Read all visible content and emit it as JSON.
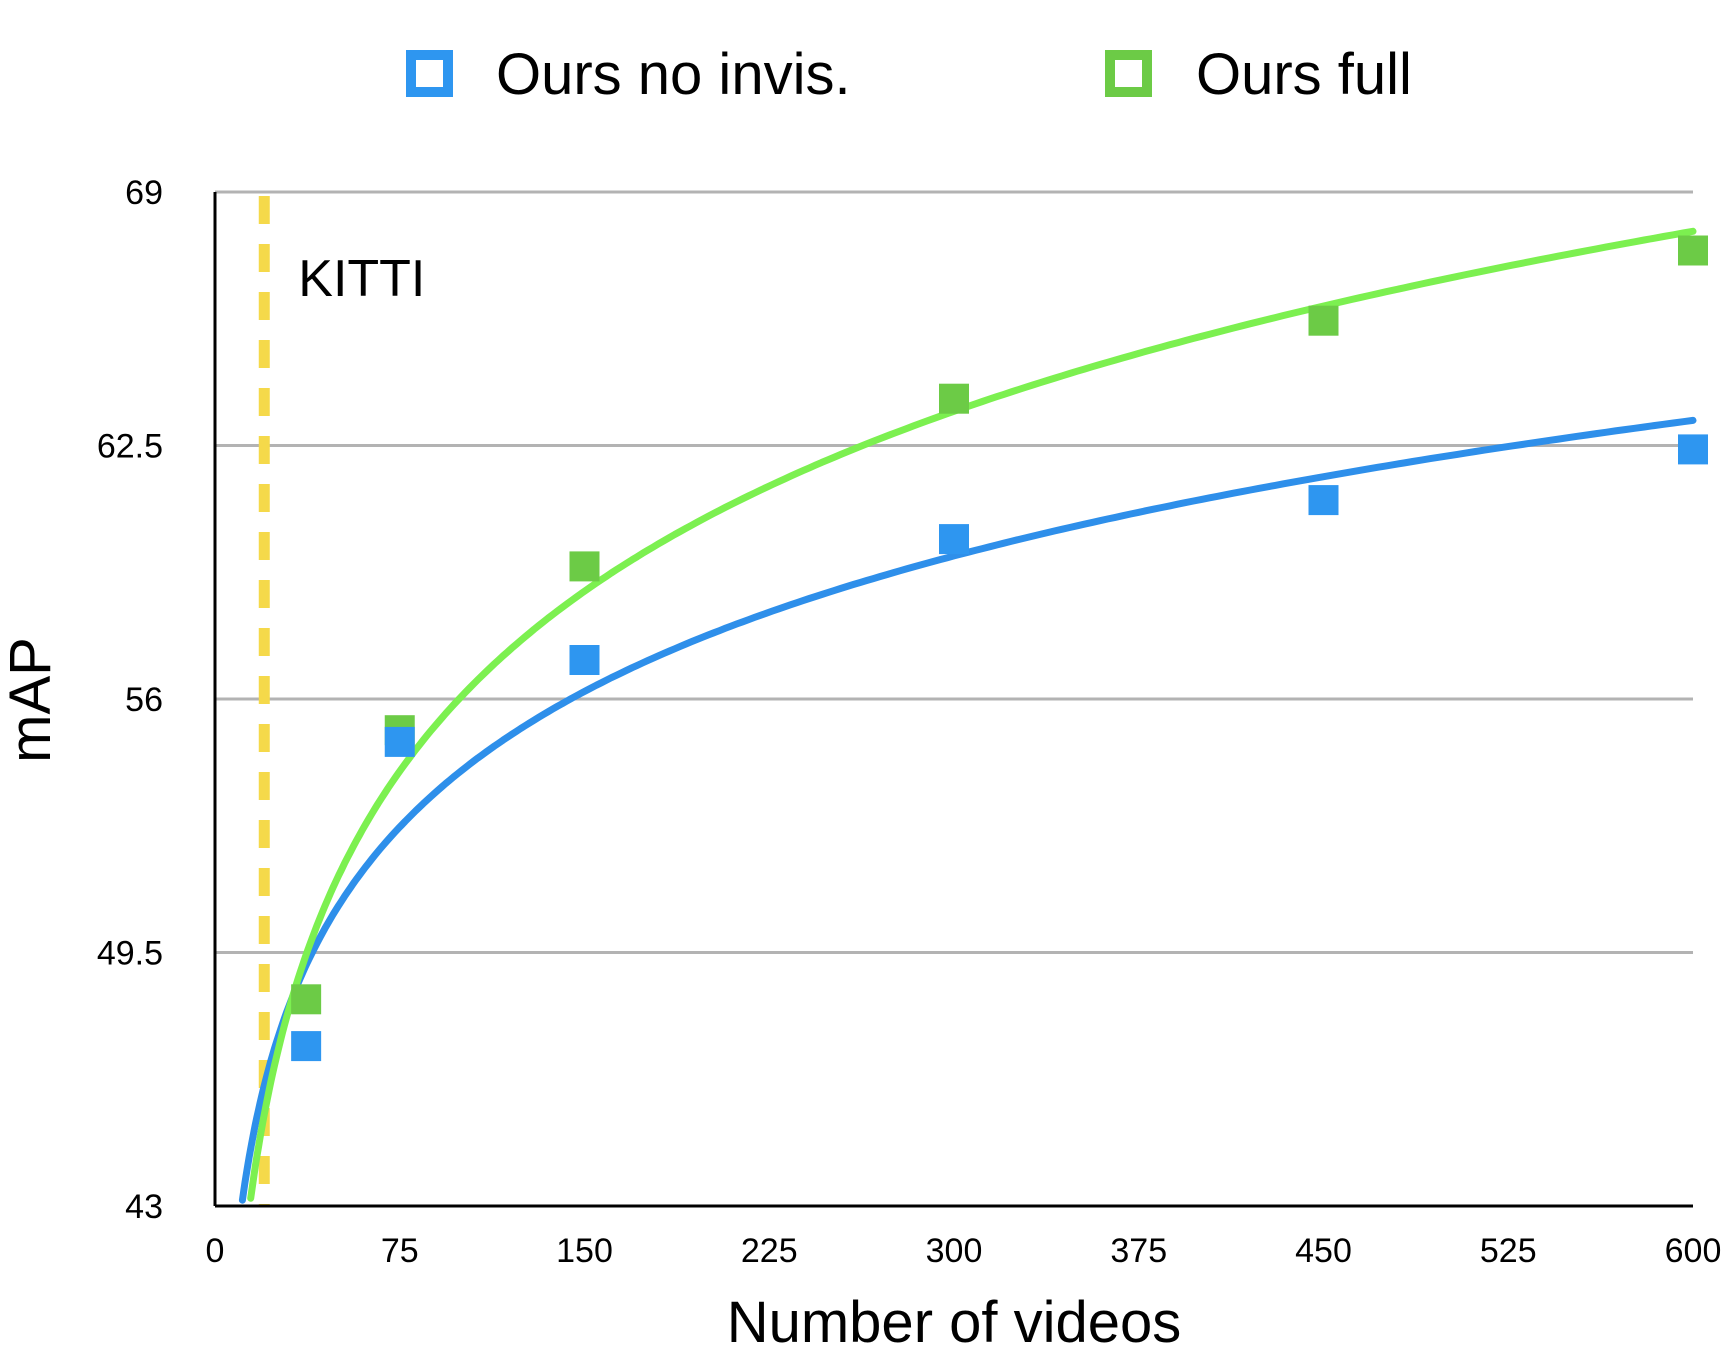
{
  "chart_data": {
    "type": "scatter",
    "title": "",
    "xlabel": "Number of videos",
    "ylabel": "mAP",
    "xlim": [
      0,
      600
    ],
    "ylim": [
      43,
      69
    ],
    "xticks": [
      0,
      75,
      150,
      225,
      300,
      375,
      450,
      525,
      600
    ],
    "xtick_labels": [
      "0",
      "75",
      "150",
      "225",
      "300",
      "375",
      "450",
      "525",
      "600"
    ],
    "yticks": [
      43,
      49.5,
      56,
      62.5,
      69
    ],
    "ytick_labels": [
      "43",
      "49.5",
      "56",
      "62.5",
      "69"
    ],
    "grid": "horizontal",
    "legend_position": "top",
    "series": [
      {
        "name": "Ours no invis.",
        "color": "#2E96F0",
        "marker": "square",
        "x": [
          37,
          75,
          150,
          300,
          450,
          600
        ],
        "y": [
          47.1,
          54.9,
          57.0,
          60.1,
          61.1,
          62.4
        ],
        "trendline": "logarithmic",
        "trend_color": "#2E8FEA"
      },
      {
        "name": "Ours full",
        "color": "#6CCB46",
        "marker": "square",
        "x": [
          37,
          75,
          150,
          300,
          450,
          600
        ],
        "y": [
          48.3,
          55.2,
          59.4,
          63.7,
          65.7,
          67.5
        ],
        "trendline": "logarithmic",
        "trend_color": "#7CF050"
      }
    ],
    "annotations": [
      {
        "type": "vertical-dashed-line",
        "x": 20,
        "color": "#F5D94A",
        "label": "KITTI"
      }
    ]
  }
}
